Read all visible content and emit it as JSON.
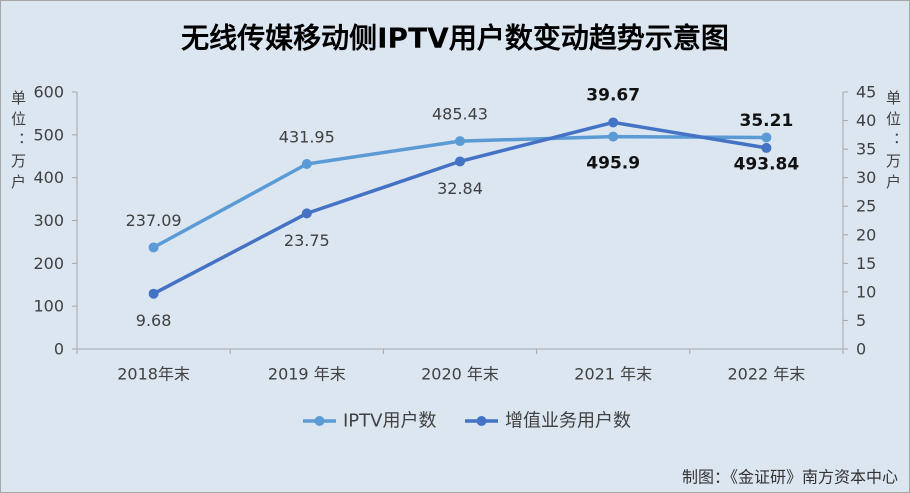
{
  "credit": "制图：《金证研》南方资本中心",
  "colors": {
    "background": "#dce6f1",
    "border": "#a6a6a6",
    "axis": "#a6a6a6",
    "text": "#404040",
    "emphasis_text": "#111111"
  },
  "chart_data": {
    "type": "line",
    "title": "无线传媒移动侧IPTV用户数变动趋势示意图",
    "categories": [
      "2018年末",
      "2019 年末",
      "2020 年末",
      "2021 年末",
      "2022 年末"
    ],
    "series": [
      {
        "name": "IPTV用户数",
        "secondary_axis": false,
        "color": "#5b9bd5",
        "values": [
          237.09,
          431.95,
          485.43,
          495.9,
          493.84
        ]
      },
      {
        "name": "增值业务用户数",
        "secondary_axis": true,
        "color": "#4472c4",
        "values": [
          9.68,
          23.75,
          32.84,
          39.67,
          35.21
        ]
      }
    ],
    "ylabel": "单位：万户",
    "y2label": "单位：万户",
    "ylim": [
      0,
      600
    ],
    "y2lim": [
      0,
      45
    ],
    "yticks": [
      0,
      100,
      200,
      300,
      400,
      500,
      600
    ],
    "y2ticks": [
      0,
      5,
      10,
      15,
      20,
      25,
      30,
      35,
      40,
      45
    ],
    "grid": false,
    "legend": "bottom",
    "data_labels": true
  }
}
